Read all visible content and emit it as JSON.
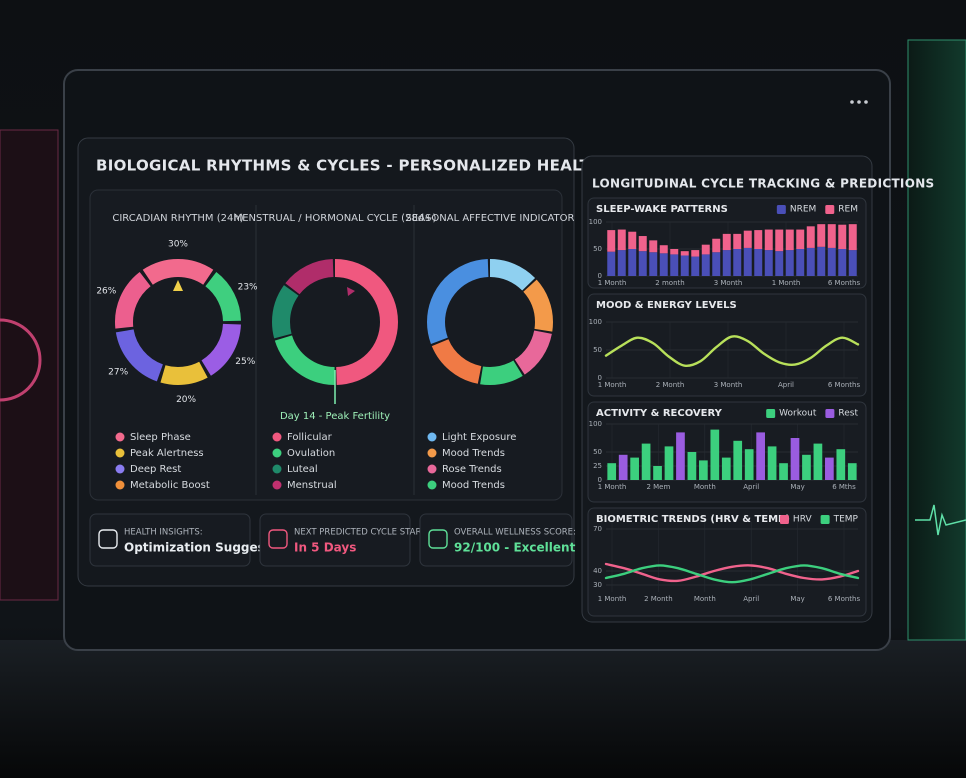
{
  "header": {
    "title": "BIOLOGICAL RHYTHMS & CYCLES - PERSONALIZED HEALTH METRICS"
  },
  "rhythms": {
    "panels": [
      {
        "title": "CIRCADIAN RHYTHM (24h)",
        "segments": [
          {
            "value": 30,
            "label": "30%",
            "color": "#f26a8d"
          },
          {
            "value": 23,
            "label": "23%",
            "color": "#3fcf7f"
          },
          {
            "value": 25,
            "label": "25%",
            "color": "#9b5de5"
          },
          {
            "value": 20,
            "label": "20%",
            "color": "#e9c03a"
          },
          {
            "value": 27,
            "label": "27%",
            "color": "#6c63e0"
          },
          {
            "value": 26,
            "label": "26%",
            "color": "#ec5f8e"
          }
        ],
        "legend": [
          {
            "name": "Sleep Phase",
            "color": "#f26a8d"
          },
          {
            "name": "Peak Alertness",
            "color": "#e9c03a"
          },
          {
            "name": "Deep Rest",
            "color": "#8a7cf0"
          },
          {
            "name": "Metabolic Boost",
            "color": "#f0903a"
          }
        ]
      },
      {
        "title": "MENSTRUAL / HORMONAL CYCLE (28d+)",
        "note": "Day 14 - Peak Fertility",
        "legend": [
          {
            "name": "Follicular",
            "color": "#f0587f"
          },
          {
            "name": "Ovulation",
            "color": "#3ccf7e"
          },
          {
            "name": "Luteal",
            "color": "#1f8a6a"
          },
          {
            "name": "Menstrual",
            "color": "#c0306f"
          }
        ]
      },
      {
        "title": "SEASONAL AFFECTIVE INDICATOR",
        "legend": [
          {
            "name": "Light Exposure",
            "color": "#6fb8f0"
          },
          {
            "name": "Mood Trends",
            "color": "#f39a4a"
          },
          {
            "name": "Rose Trends",
            "color": "#e8689a"
          },
          {
            "name": "Mood Trends",
            "color": "#3ccf7e"
          }
        ]
      }
    ]
  },
  "cards": [
    {
      "label": "HEALTH INSIGHTS:",
      "value": "Optimization Suggested"
    },
    {
      "label": "NEXT PREDICTED CYCLE START:",
      "value": "In 5 Days"
    },
    {
      "label": "OVERALL WELLNESS SCORE:",
      "value": "92/100 - Excellent"
    }
  ],
  "trends": {
    "title": "LONGITUDINAL CYCLE TRACKING & PREDICTIONS",
    "charts": [
      {
        "title": "SLEEP-WAKE PATTERNS",
        "type": "stacked-bar",
        "ylim": [
          0,
          100
        ],
        "yticks": [
          0,
          50,
          100
        ],
        "xlabels": [
          "1 Month",
          "2 month",
          "3 Month",
          "1 Month",
          "6 Months"
        ],
        "series": [
          {
            "name": "NREM",
            "color": "#4a4fb8",
            "values": [
              45,
              48,
              50,
              46,
              44,
              42,
              40,
              38,
              36,
              40,
              44,
              48,
              50,
              52,
              50,
              48,
              46,
              48,
              50,
              52,
              54,
              52,
              50,
              48
            ]
          },
          {
            "name": "REM",
            "color": "#f0628c",
            "values": [
              40,
              38,
              32,
              28,
              22,
              15,
              10,
              8,
              12,
              18,
              25,
              30,
              28,
              32,
              35,
              38,
              40,
              38,
              36,
              40,
              42,
              44,
              45,
              48
            ]
          }
        ]
      },
      {
        "title": "MOOD & ENERGY LEVELS",
        "type": "line",
        "ylim": [
          0,
          100
        ],
        "yticks": [
          0,
          50,
          100
        ],
        "xlabels": [
          "1 Month",
          "2 Month",
          "3 Month",
          "April",
          "6 Months"
        ],
        "series": [
          {
            "name": null,
            "color": "#b8e05a",
            "values": [
              40,
              58,
              72,
              62,
              38,
              22,
              30,
              55,
              74,
              66,
              44,
              28,
              24,
              36,
              58,
              72,
              60
            ]
          }
        ]
      },
      {
        "title": "ACTIVITY & RECOVERY",
        "type": "bar",
        "ylim": [
          0,
          100
        ],
        "yticks": [
          0,
          25,
          50,
          100
        ],
        "xlabels": [
          "1 Month",
          "2 Mem",
          "Month",
          "April",
          "May",
          "6 Mths"
        ],
        "series": [
          {
            "name": "Workout",
            "color": "#3ccf7e",
            "values": [
              30,
              null,
              40,
              65,
              25,
              60,
              null,
              50,
              35,
              90,
              40,
              70,
              55,
              null,
              60,
              30,
              null,
              45,
              65,
              null,
              55,
              30
            ]
          },
          {
            "name": "Rest",
            "color": "#9a5ce0",
            "values": [
              null,
              45,
              null,
              null,
              null,
              null,
              85,
              null,
              null,
              null,
              null,
              null,
              null,
              85,
              null,
              null,
              75,
              null,
              null,
              40,
              null,
              null
            ]
          }
        ]
      },
      {
        "title": "BIOMETRIC TRENDS (HRV & TEMP)",
        "type": "line",
        "ylim": [
          25,
          75
        ],
        "yticks": [
          30,
          40,
          70
        ],
        "xlabels": [
          "1 Month",
          "2 Month",
          "Month",
          "April",
          "May",
          "6 Months"
        ],
        "series": [
          {
            "name": "HRV",
            "color": "#f0628c",
            "values": [
              45,
              42,
              38,
              34,
              33,
              36,
              40,
              43,
              44,
              42,
              38,
              35,
              34,
              36,
              40
            ]
          },
          {
            "name": "TEMP",
            "color": "#3ccf7e",
            "values": [
              35,
              38,
              42,
              44,
              42,
              38,
              34,
              32,
              34,
              38,
              42,
              44,
              42,
              38,
              35
            ]
          }
        ]
      }
    ]
  }
}
